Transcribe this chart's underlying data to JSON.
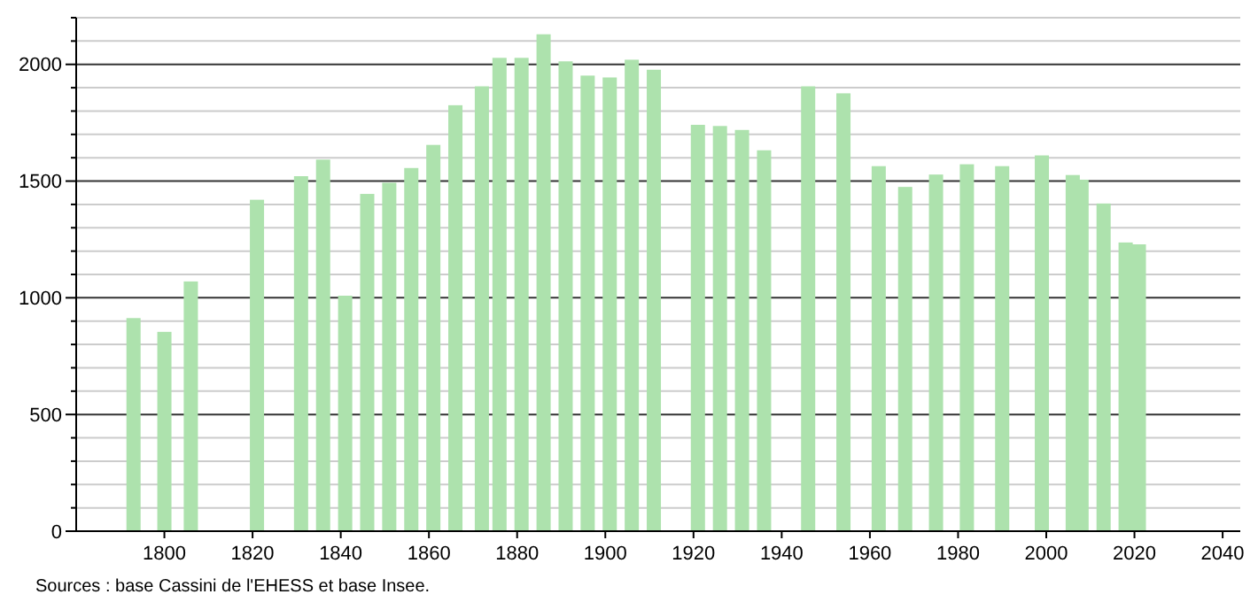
{
  "chart_data": {
    "type": "bar",
    "x": [
      1793,
      1800,
      1806,
      1821,
      1831,
      1836,
      1841,
      1846,
      1851,
      1856,
      1861,
      1866,
      1872,
      1876,
      1881,
      1886,
      1891,
      1896,
      1901,
      1906,
      1911,
      1921,
      1926,
      1931,
      1936,
      1946,
      1954,
      1962,
      1968,
      1975,
      1982,
      1990,
      1999,
      2006,
      2008,
      2013,
      2018,
      2021
    ],
    "values": [
      913,
      854,
      1070,
      1420,
      1521,
      1592,
      1009,
      1445,
      1493,
      1556,
      1655,
      1825,
      1906,
      2028,
      2028,
      2129,
      2013,
      1952,
      1944,
      2020,
      1977,
      1741,
      1736,
      1719,
      1632,
      1906,
      1876,
      1564,
      1475,
      1528,
      1572,
      1564,
      1610,
      1526,
      1506,
      1404,
      1237,
      1229
    ],
    "color": "#ade2ad",
    "xlim": [
      1780,
      2044
    ],
    "xticks": [
      1800,
      1820,
      1840,
      1860,
      1880,
      1900,
      1920,
      1940,
      1960,
      1980,
      2000,
      2020,
      2040
    ],
    "ylim": [
      0,
      2200
    ],
    "yticks": [
      0,
      {
        "value": 100,
        "label": null
      },
      {
        "value": 200,
        "label": null
      },
      {
        "value": 300,
        "label": null
      },
      {
        "value": 400,
        "label": null
      },
      500,
      {
        "value": 600,
        "label": null
      },
      {
        "value": 700,
        "label": null
      },
      {
        "value": 800,
        "label": null
      },
      {
        "value": 900,
        "label": null
      },
      1000,
      {
        "value": 1100,
        "label": null
      },
      {
        "value": 1200,
        "label": null
      },
      {
        "value": 1300,
        "label": null
      },
      {
        "value": 1400,
        "label": null
      },
      1500,
      {
        "value": 1600,
        "label": null
      },
      {
        "value": 1700,
        "label": null
      },
      {
        "value": 1800,
        "label": null
      },
      {
        "value": 1900,
        "label": null
      },
      2000,
      {
        "value": 2100,
        "label": null
      },
      {
        "value": 2200,
        "label": null
      }
    ],
    "grid": true,
    "annotations": [
      "Sources : base Cassini de l'EHESS et base Insee."
    ]
  }
}
